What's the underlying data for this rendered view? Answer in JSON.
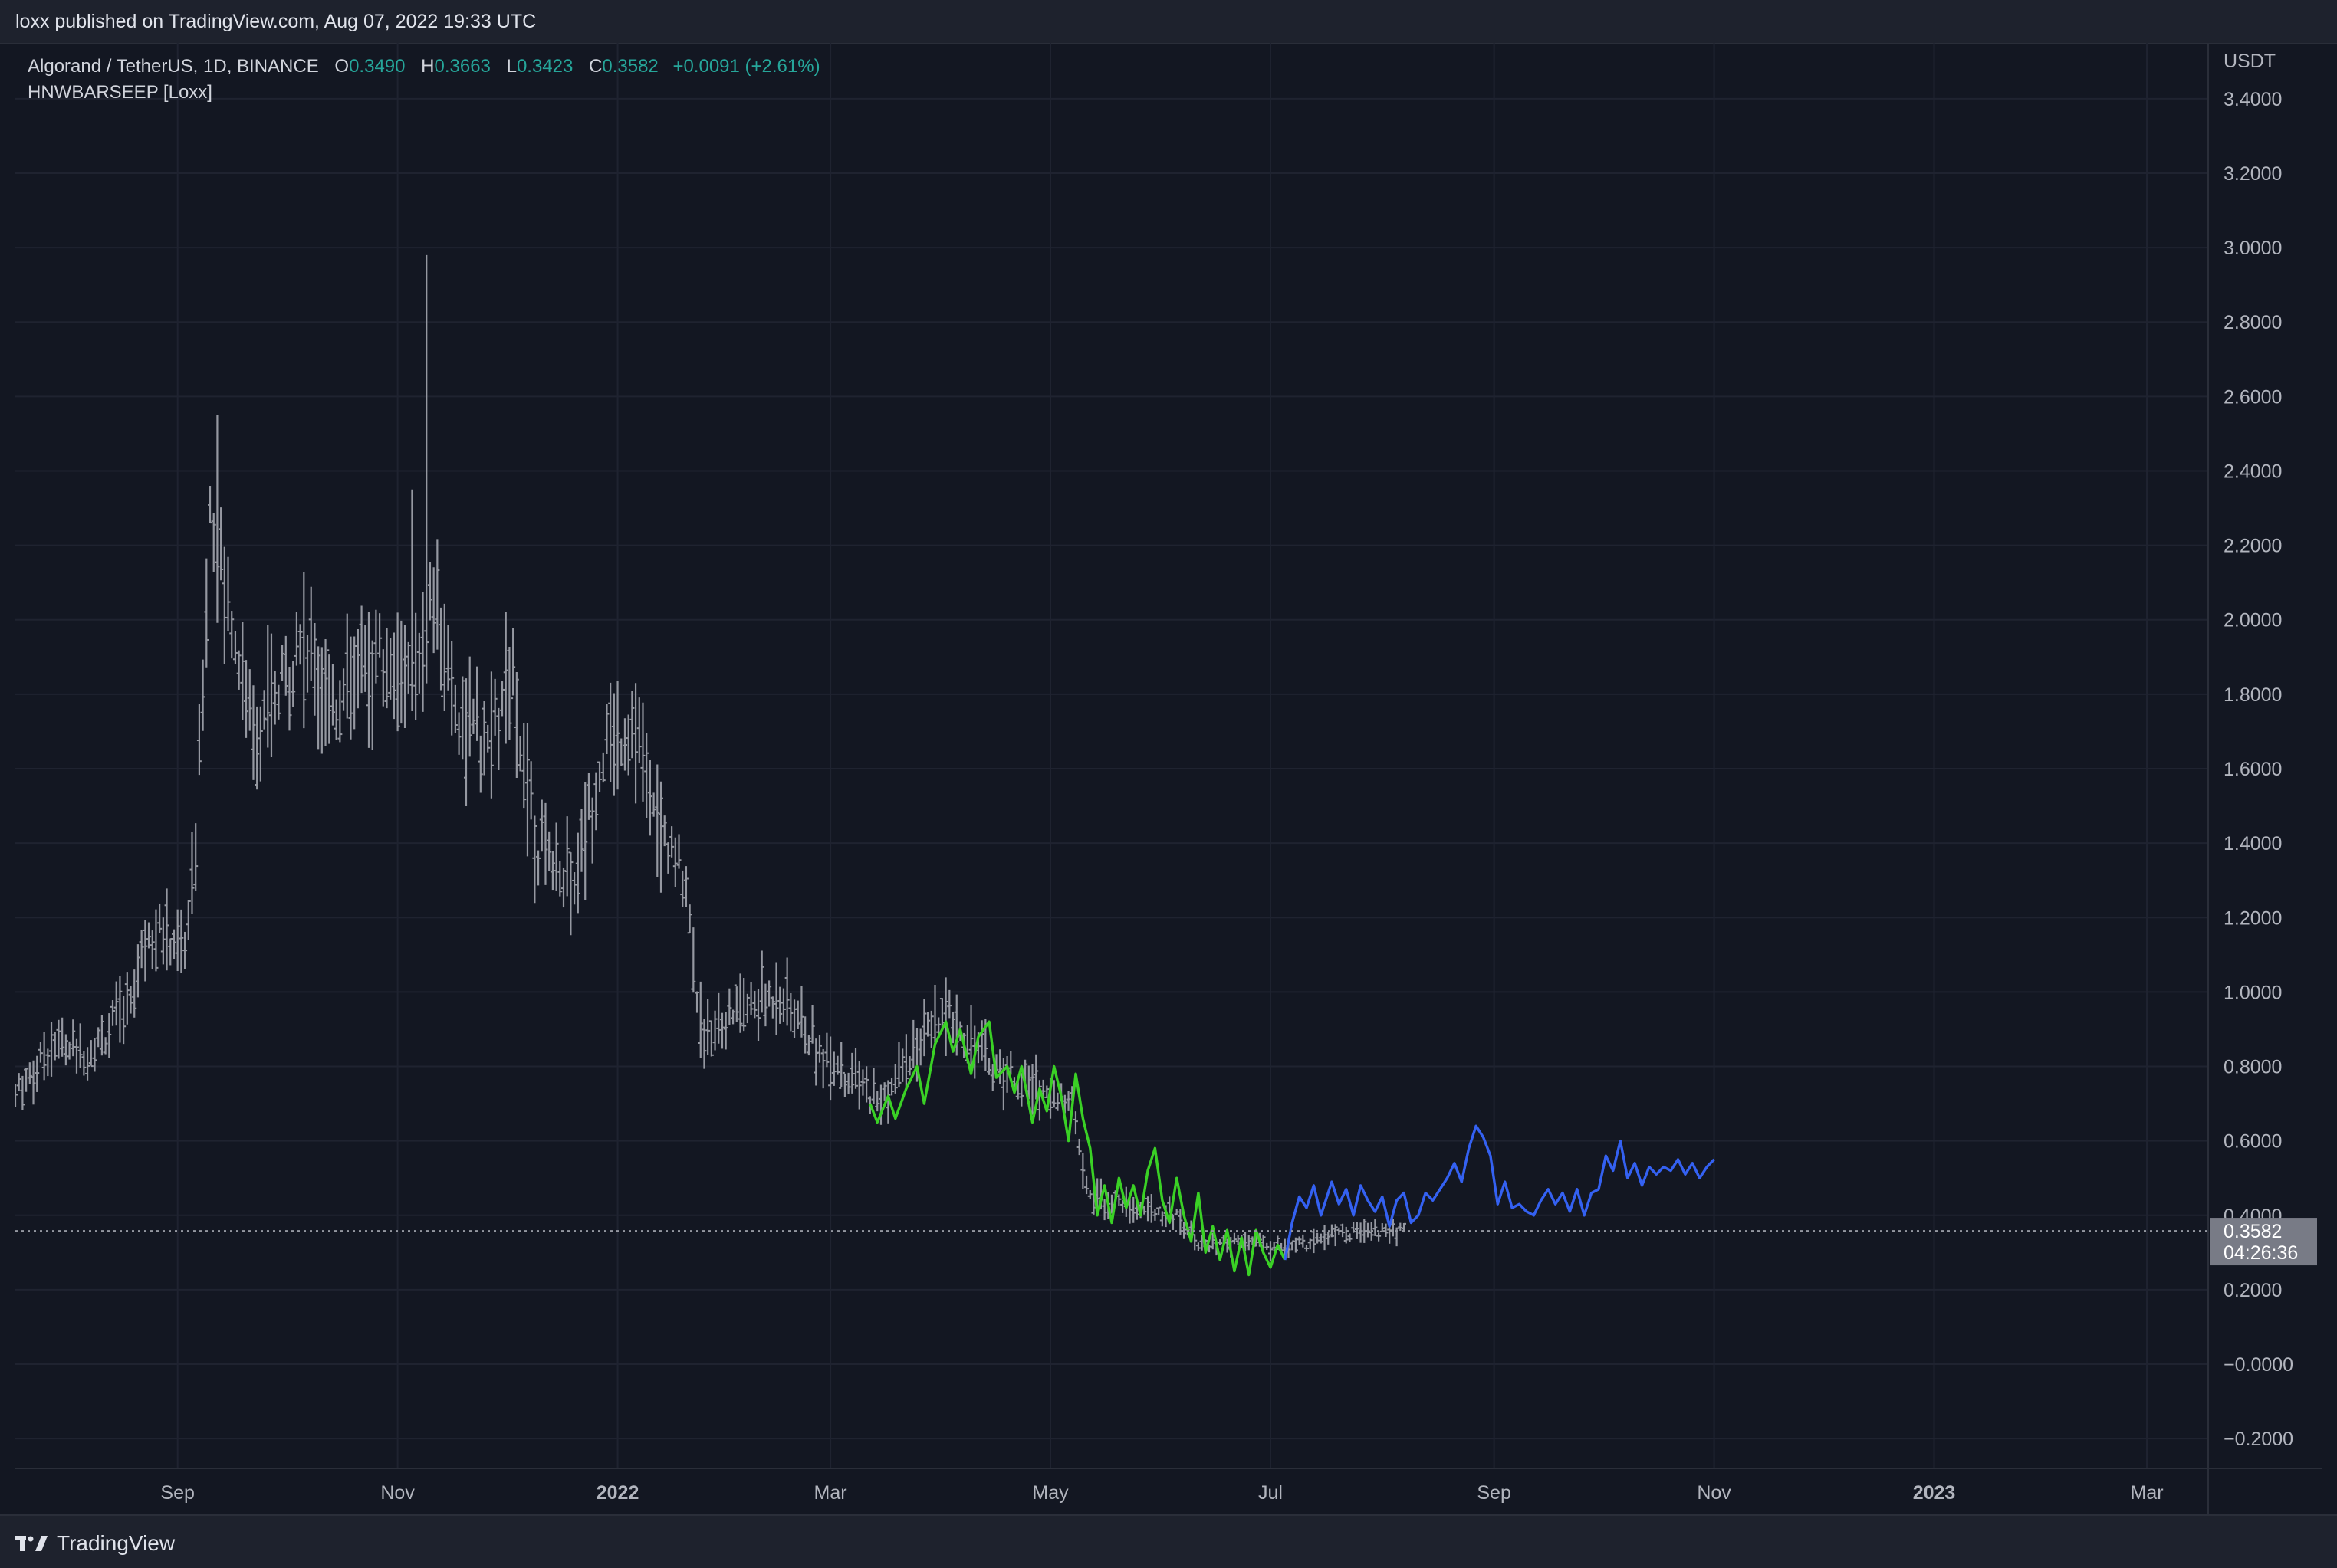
{
  "header": {
    "published_text": "loxx published on TradingView.com, Aug 07, 2022 19:33 UTC"
  },
  "legend": {
    "symbol": "Algorand / TetherUS, 1D, BINANCE",
    "open_label": "O",
    "open": "0.3490",
    "high_label": "H",
    "high": "0.3663",
    "low_label": "L",
    "low": "0.3423",
    "close_label": "C",
    "close": "0.3582",
    "change": "+0.0091 (+2.61%)",
    "indicator": "HNWBARSEEP [Loxx]"
  },
  "footer": {
    "brand": "TradingView"
  },
  "colors": {
    "background": "#131722",
    "bars": "#9598a1",
    "line_green": "#3ad125",
    "line_blue": "#3461f2",
    "grid": "#1f2330",
    "price_tag": "#787b86"
  },
  "chart_data": {
    "type": "line",
    "title": "",
    "currency_label": "USDT",
    "last_price": "0.3582",
    "countdown": "04:26:36",
    "ylim": [
      -0.28,
      3.55
    ],
    "yticks": [
      "3.4000",
      "3.2000",
      "3.0000",
      "2.8000",
      "2.6000",
      "2.4000",
      "2.2000",
      "2.0000",
      "1.8000",
      "1.6000",
      "1.4000",
      "1.2000",
      "1.0000",
      "0.8000",
      "0.6000",
      "0.4000",
      "0.2000",
      "−0.0000",
      "−0.2000"
    ],
    "ytick_values": [
      3.4,
      3.2,
      3.0,
      2.8,
      2.6,
      2.4,
      2.2,
      2.0,
      1.8,
      1.6,
      1.4,
      1.2,
      1.0,
      0.8,
      0.6,
      0.4,
      0.2,
      0.0,
      -0.2
    ],
    "xticks": [
      {
        "label": "Sep",
        "date": "2021-09-01",
        "bold": false
      },
      {
        "label": "Nov",
        "date": "2021-11-01",
        "bold": false
      },
      {
        "label": "2022",
        "date": "2022-01-01",
        "bold": true
      },
      {
        "label": "Mar",
        "date": "2022-03-01",
        "bold": false
      },
      {
        "label": "May",
        "date": "2022-05-01",
        "bold": false
      },
      {
        "label": "Jul",
        "date": "2022-07-01",
        "bold": false
      },
      {
        "label": "Sep",
        "date": "2022-09-01",
        "bold": false
      },
      {
        "label": "Nov",
        "date": "2022-11-01",
        "bold": false
      },
      {
        "label": "2023",
        "date": "2023-01-01",
        "bold": true
      },
      {
        "label": "Mar",
        "date": "2023-03-01",
        "bold": false
      }
    ],
    "x_start": "2021-07-18",
    "x_end": "2023-03-18",
    "price_anchors": [
      [
        "2021-07-18",
        0.72
      ],
      [
        "2021-07-28",
        0.86
      ],
      [
        "2021-08-08",
        0.84
      ],
      [
        "2021-08-18",
        0.96
      ],
      [
        "2021-08-24",
        1.18
      ],
      [
        "2021-09-03",
        1.12
      ],
      [
        "2021-09-06",
        1.38
      ],
      [
        "2021-09-10",
        2.3
      ],
      [
        "2021-09-15",
        2.05
      ],
      [
        "2021-09-22",
        1.7
      ],
      [
        "2021-09-28",
        1.75
      ],
      [
        "2021-10-05",
        1.95
      ],
      [
        "2021-10-15",
        1.78
      ],
      [
        "2021-10-25",
        1.9
      ],
      [
        "2021-11-05",
        1.85
      ],
      [
        "2021-11-11",
        2.05
      ],
      [
        "2021-11-18",
        1.75
      ],
      [
        "2021-11-25",
        1.65
      ],
      [
        "2021-12-03",
        1.8
      ],
      [
        "2021-12-10",
        1.4
      ],
      [
        "2021-12-20",
        1.3
      ],
      [
        "2021-12-28",
        1.65
      ],
      [
        "2022-01-05",
        1.72
      ],
      [
        "2022-01-12",
        1.45
      ],
      [
        "2022-01-20",
        1.3
      ],
      [
        "2022-01-24",
        0.9
      ],
      [
        "2022-02-05",
        0.95
      ],
      [
        "2022-02-15",
        1.0
      ],
      [
        "2022-02-25",
        0.85
      ],
      [
        "2022-03-08",
        0.76
      ],
      [
        "2022-03-15",
        0.7
      ],
      [
        "2022-03-25",
        0.85
      ],
      [
        "2022-04-03",
        0.94
      ],
      [
        "2022-04-15",
        0.8
      ],
      [
        "2022-04-28",
        0.74
      ],
      [
        "2022-05-07",
        0.7
      ],
      [
        "2022-05-12",
        0.45
      ],
      [
        "2022-05-25",
        0.42
      ],
      [
        "2022-06-05",
        0.4
      ],
      [
        "2022-06-13",
        0.31
      ],
      [
        "2022-06-25",
        0.33
      ],
      [
        "2022-07-05",
        0.31
      ],
      [
        "2022-07-20",
        0.35
      ],
      [
        "2022-08-07",
        0.358
      ]
    ],
    "price_spikes": [
      [
        "2021-09-12",
        2.55
      ],
      [
        "2021-11-09",
        2.98
      ],
      [
        "2021-11-05",
        2.35
      ],
      [
        "2021-12-01",
        2.02
      ],
      [
        "2022-01-06",
        1.83
      ]
    ],
    "series": [
      {
        "color": "#3ad125",
        "points": [
          [
            "2022-03-12",
            0.7
          ],
          [
            "2022-03-14",
            0.65
          ],
          [
            "2022-03-17",
            0.72
          ],
          [
            "2022-03-19",
            0.66
          ],
          [
            "2022-03-22",
            0.74
          ],
          [
            "2022-03-25",
            0.8
          ],
          [
            "2022-03-27",
            0.7
          ],
          [
            "2022-03-30",
            0.86
          ],
          [
            "2022-04-02",
            0.92
          ],
          [
            "2022-04-04",
            0.84
          ],
          [
            "2022-04-06",
            0.9
          ],
          [
            "2022-04-09",
            0.78
          ],
          [
            "2022-04-11",
            0.88
          ],
          [
            "2022-04-14",
            0.92
          ],
          [
            "2022-04-16",
            0.77
          ],
          [
            "2022-04-19",
            0.8
          ],
          [
            "2022-04-21",
            0.73
          ],
          [
            "2022-04-23",
            0.8
          ],
          [
            "2022-04-26",
            0.65
          ],
          [
            "2022-04-28",
            0.74
          ],
          [
            "2022-04-30",
            0.68
          ],
          [
            "2022-05-02",
            0.8
          ],
          [
            "2022-05-04",
            0.72
          ],
          [
            "2022-05-06",
            0.6
          ],
          [
            "2022-05-08",
            0.78
          ],
          [
            "2022-05-10",
            0.66
          ],
          [
            "2022-05-12",
            0.58
          ],
          [
            "2022-05-14",
            0.4
          ],
          [
            "2022-05-16",
            0.48
          ],
          [
            "2022-05-18",
            0.38
          ],
          [
            "2022-05-20",
            0.5
          ],
          [
            "2022-05-22",
            0.42
          ],
          [
            "2022-05-24",
            0.48
          ],
          [
            "2022-05-26",
            0.4
          ],
          [
            "2022-05-28",
            0.52
          ],
          [
            "2022-05-30",
            0.58
          ],
          [
            "2022-06-01",
            0.44
          ],
          [
            "2022-06-03",
            0.38
          ],
          [
            "2022-06-05",
            0.5
          ],
          [
            "2022-06-07",
            0.4
          ],
          [
            "2022-06-09",
            0.33
          ],
          [
            "2022-06-11",
            0.46
          ],
          [
            "2022-06-13",
            0.3
          ],
          [
            "2022-06-15",
            0.37
          ],
          [
            "2022-06-17",
            0.28
          ],
          [
            "2022-06-19",
            0.36
          ],
          [
            "2022-06-21",
            0.25
          ],
          [
            "2022-06-23",
            0.34
          ],
          [
            "2022-06-25",
            0.24
          ],
          [
            "2022-06-27",
            0.36
          ],
          [
            "2022-06-29",
            0.3
          ],
          [
            "2022-07-01",
            0.26
          ],
          [
            "2022-07-03",
            0.32
          ],
          [
            "2022-07-05",
            0.28
          ]
        ]
      },
      {
        "color": "#3461f2",
        "points": [
          [
            "2022-07-05",
            0.28
          ],
          [
            "2022-07-07",
            0.38
          ],
          [
            "2022-07-09",
            0.45
          ],
          [
            "2022-07-11",
            0.42
          ],
          [
            "2022-07-13",
            0.48
          ],
          [
            "2022-07-15",
            0.4
          ],
          [
            "2022-07-18",
            0.49
          ],
          [
            "2022-07-20",
            0.43
          ],
          [
            "2022-07-22",
            0.47
          ],
          [
            "2022-07-24",
            0.4
          ],
          [
            "2022-07-26",
            0.48
          ],
          [
            "2022-07-28",
            0.44
          ],
          [
            "2022-07-30",
            0.41
          ],
          [
            "2022-08-01",
            0.45
          ],
          [
            "2022-08-03",
            0.37
          ],
          [
            "2022-08-05",
            0.44
          ],
          [
            "2022-08-07",
            0.46
          ],
          [
            "2022-08-09",
            0.38
          ],
          [
            "2022-08-11",
            0.4
          ],
          [
            "2022-08-13",
            0.46
          ],
          [
            "2022-08-15",
            0.44
          ],
          [
            "2022-08-17",
            0.47
          ],
          [
            "2022-08-19",
            0.5
          ],
          [
            "2022-08-21",
            0.54
          ],
          [
            "2022-08-23",
            0.49
          ],
          [
            "2022-08-25",
            0.58
          ],
          [
            "2022-08-27",
            0.64
          ],
          [
            "2022-08-29",
            0.61
          ],
          [
            "2022-08-31",
            0.56
          ],
          [
            "2022-09-02",
            0.43
          ],
          [
            "2022-09-04",
            0.49
          ],
          [
            "2022-09-06",
            0.42
          ],
          [
            "2022-09-08",
            0.43
          ],
          [
            "2022-09-10",
            0.41
          ],
          [
            "2022-09-12",
            0.4
          ],
          [
            "2022-09-14",
            0.44
          ],
          [
            "2022-09-16",
            0.47
          ],
          [
            "2022-09-18",
            0.43
          ],
          [
            "2022-09-20",
            0.46
          ],
          [
            "2022-09-22",
            0.41
          ],
          [
            "2022-09-24",
            0.47
          ],
          [
            "2022-09-26",
            0.4
          ],
          [
            "2022-09-28",
            0.46
          ],
          [
            "2022-09-30",
            0.47
          ],
          [
            "2022-10-02",
            0.56
          ],
          [
            "2022-10-04",
            0.52
          ],
          [
            "2022-10-06",
            0.6
          ],
          [
            "2022-10-08",
            0.5
          ],
          [
            "2022-10-10",
            0.54
          ],
          [
            "2022-10-12",
            0.48
          ],
          [
            "2022-10-14",
            0.53
          ],
          [
            "2022-10-16",
            0.51
          ],
          [
            "2022-10-18",
            0.53
          ],
          [
            "2022-10-20",
            0.52
          ],
          [
            "2022-10-22",
            0.55
          ],
          [
            "2022-10-24",
            0.51
          ],
          [
            "2022-10-26",
            0.54
          ],
          [
            "2022-10-28",
            0.5
          ],
          [
            "2022-10-30",
            0.53
          ],
          [
            "2022-11-01",
            0.55
          ]
        ]
      }
    ]
  }
}
